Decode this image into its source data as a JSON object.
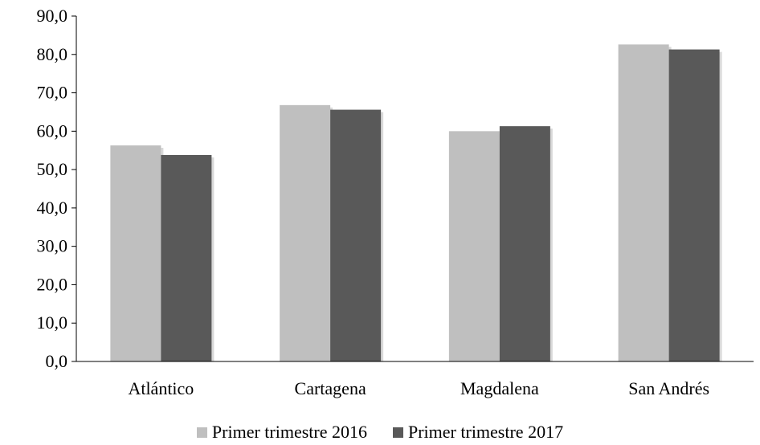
{
  "chart_data": {
    "type": "bar",
    "title": "",
    "xlabel": "",
    "ylabel": "",
    "categories": [
      "Atlántico",
      "Cartagena",
      "Magdalena",
      "San Andrés"
    ],
    "series": [
      {
        "name": "Primer trimestre 2016",
        "color": "#bfbfbf",
        "values": [
          56.3,
          66.8,
          60.0,
          82.6
        ]
      },
      {
        "name": "Primer trimestre 2017",
        "color": "#595959",
        "values": [
          53.8,
          65.6,
          61.3,
          81.3
        ]
      }
    ],
    "ylim": [
      0,
      90
    ],
    "yticks": [
      "0,0",
      "10,0",
      "20,0",
      "30,0",
      "40,0",
      "50,0",
      "60,0",
      "70,0",
      "80,0",
      "90,0"
    ],
    "grid": false,
    "legend_position": "bottom"
  }
}
